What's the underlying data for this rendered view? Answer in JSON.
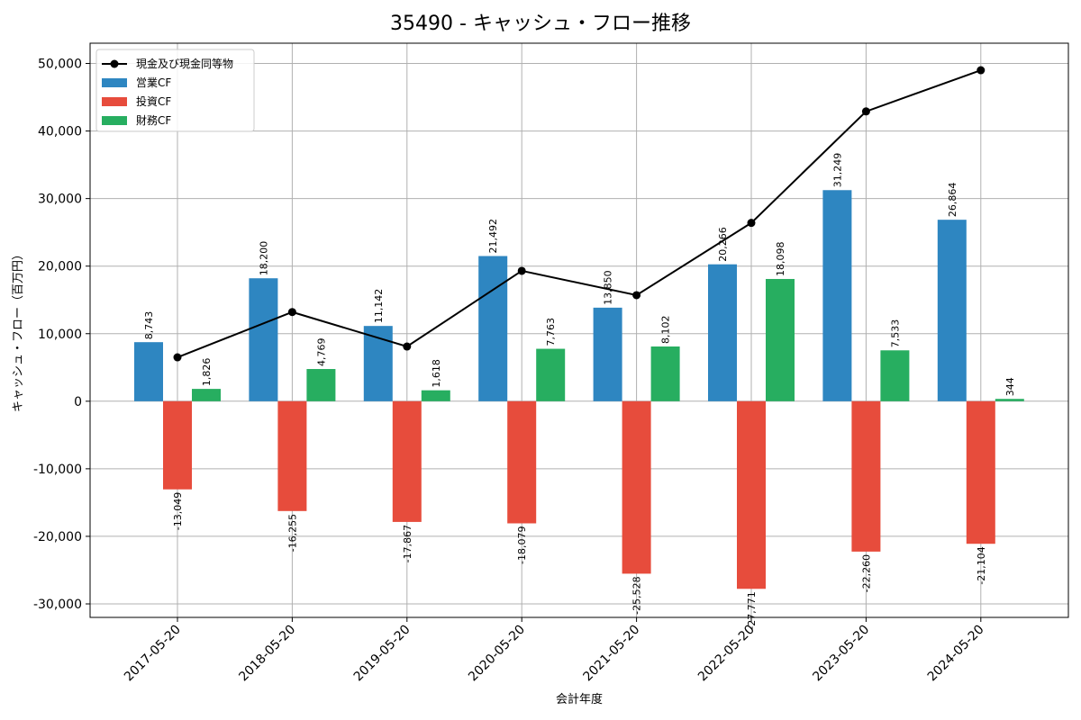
{
  "chart_data": {
    "type": "bar",
    "title": "35490 - キャッシュ・フロー推移",
    "xlabel": "会計年度",
    "ylabel": "キャッシュ・フロー（百万円）",
    "categories": [
      "2017-05-20",
      "2018-05-20",
      "2019-05-20",
      "2020-05-20",
      "2021-05-20",
      "2022-05-20",
      "2023-05-20",
      "2024-05-20"
    ],
    "ylim": [
      -32000,
      53000
    ],
    "yticks": [
      -30000,
      -20000,
      -10000,
      0,
      10000,
      20000,
      30000,
      40000,
      50000
    ],
    "ytick_labels": [
      "-30,000",
      "-20,000",
      "-10,000",
      "0",
      "10,000",
      "20,000",
      "30,000",
      "40,000",
      "50,000"
    ],
    "grid": true,
    "legend_position": "top-left",
    "series": [
      {
        "name": "営業CF",
        "kind": "bar",
        "color": "#2e86c1",
        "values": [
          8743,
          18200,
          11142,
          21492,
          13850,
          20266,
          31249,
          26864
        ],
        "labels": [
          "8,743",
          "18,200",
          "11,142",
          "21,492",
          "13,850",
          "20,266",
          "31,249",
          "26,864"
        ]
      },
      {
        "name": "投資CF",
        "kind": "bar",
        "color": "#e74c3c",
        "values": [
          -13049,
          -16255,
          -17867,
          -18079,
          -25528,
          -27771,
          -22260,
          -21104
        ],
        "labels": [
          "-13,049",
          "-16,255",
          "-17,867",
          "-18,079",
          "-25,528",
          "-27,771",
          "-22,260",
          "-21,104"
        ]
      },
      {
        "name": "財務CF",
        "kind": "bar",
        "color": "#27ae60",
        "values": [
          1826,
          4769,
          1618,
          7763,
          8102,
          18098,
          7533,
          344
        ],
        "labels": [
          "1,826",
          "4,769",
          "1,618",
          "7,763",
          "8,102",
          "18,098",
          "7,533",
          "344"
        ]
      },
      {
        "name": "現金及び現金同等物",
        "kind": "line",
        "color": "#000000",
        "values": [
          6500,
          13200,
          8100,
          19300,
          15700,
          26400,
          42900,
          49000
        ]
      }
    ]
  }
}
